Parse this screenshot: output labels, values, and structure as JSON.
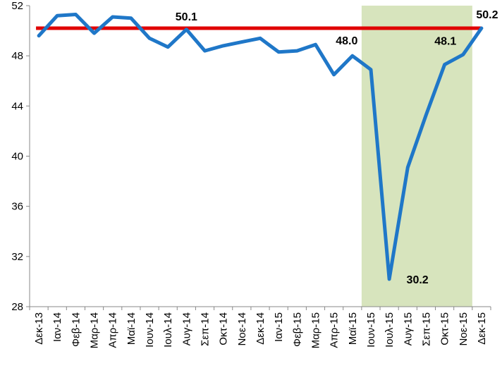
{
  "chart_data": {
    "type": "line",
    "categories": [
      "Δεκ-13",
      "Ιαν-14",
      "Φεβ-14",
      "Μαρ-14",
      "Απρ-14",
      "Μαϊ-14",
      "Ιουν-14",
      "Ιουλ-14",
      "Αυγ-14",
      "Σεπ-14",
      "Οκτ-14",
      "Νοε-14",
      "Δεκ-14",
      "Ιαν-15",
      "Φεβ-15",
      "Μαρ-15",
      "Απρ-15",
      "Μαϊ-15",
      "Ιουν-15",
      "Ιουλ-15",
      "Αυγ-15",
      "Σεπ-15",
      "Οκτ-15",
      "Νοε-15",
      "Δεκ-15"
    ],
    "series": [
      {
        "values": [
          49.6,
          51.2,
          51.3,
          49.8,
          51.1,
          51.0,
          49.4,
          48.7,
          50.1,
          48.4,
          48.8,
          49.1,
          49.4,
          48.3,
          48.4,
          48.9,
          46.5,
          48.0,
          46.9,
          30.2,
          39.1,
          43.3,
          47.3,
          48.1,
          50.2
        ],
        "color": "#1f77c8"
      }
    ],
    "reference_line": {
      "value": 50.2,
      "color": "#e00000"
    },
    "shaded_region": {
      "from": "Ιουν-15",
      "to": "Νοε-15",
      "color": "#d7e4bd"
    },
    "data_labels": [
      {
        "category": "Αυγ-14",
        "text": "50.1"
      },
      {
        "category": "Μαϊ-15",
        "text": "48.0"
      },
      {
        "category": "Ιουλ-15",
        "text": "30.2"
      },
      {
        "category": "Νοε-15",
        "text": "48.1"
      },
      {
        "category": "Δεκ-15",
        "text": "50.2"
      }
    ],
    "yticks": [
      "28",
      "32",
      "36",
      "40",
      "44",
      "48",
      "52"
    ],
    "ylim": [
      28,
      52
    ],
    "grid": false,
    "legend": "none"
  }
}
